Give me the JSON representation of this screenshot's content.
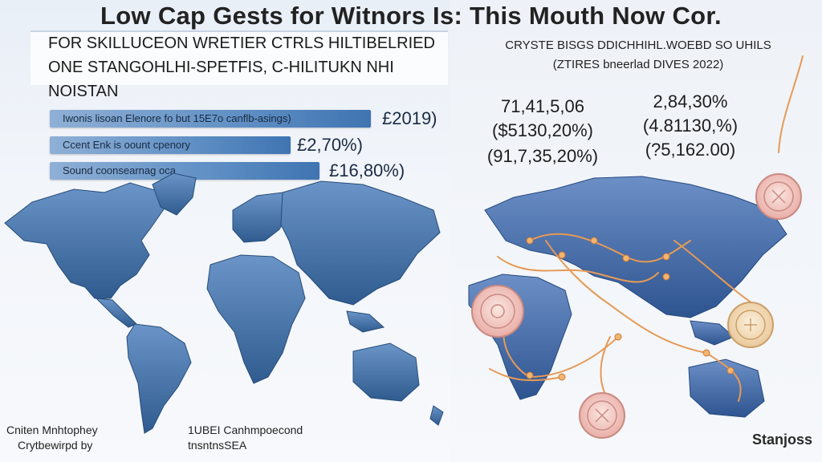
{
  "title": "Low Cap Gests for Witnors Is: This Mouth Now Cor.",
  "left": {
    "header_lines": [
      "FOR SKILLUCEON WRETIER CTRLS HILTIBELRIED",
      "ONE STANGOHLHI-SPETFIS, C-HILITUKN NHI",
      "NOISTAN"
    ],
    "bars": [
      {
        "label": "Iwonis lisoan Elenore fo but 15E7o canflb-asings)",
        "value": "£2019)"
      },
      {
        "label": "Ccent Enk is oount cpenory",
        "value": "£2,70%)"
      },
      {
        "label": "Sound coonsearnag oca",
        "value": "£16,80%)"
      }
    ],
    "footer_left": [
      "Cniten Mnhtophey",
      "Crytbewirpd by"
    ],
    "footer_mid": [
      "1UBEI Canhmpoecond",
      "tnsntnsSEA"
    ]
  },
  "right": {
    "header_lines": [
      "CRYSTE BISGS DDICHHIHL.WOEBD SO UHILS",
      "(ZTIRES bneerlad DIVES 2022)"
    ],
    "stats_left": [
      "71,41,5,06",
      "($5130,20%)",
      "(91,7,35,20%)"
    ],
    "stats_right": [
      "2,84,30%",
      "(4.81130,%)",
      "(?5,162.00)"
    ],
    "brand": "Stanjoss"
  },
  "colors": {
    "map_blue": "#3d6fa8",
    "map_dark": "#2f5b8f",
    "bar_blue": "#5f8fc4",
    "route_orange": "#e69a55",
    "coin_pink": "#f3c9c3",
    "coin_cream": "#f5dfc0"
  }
}
